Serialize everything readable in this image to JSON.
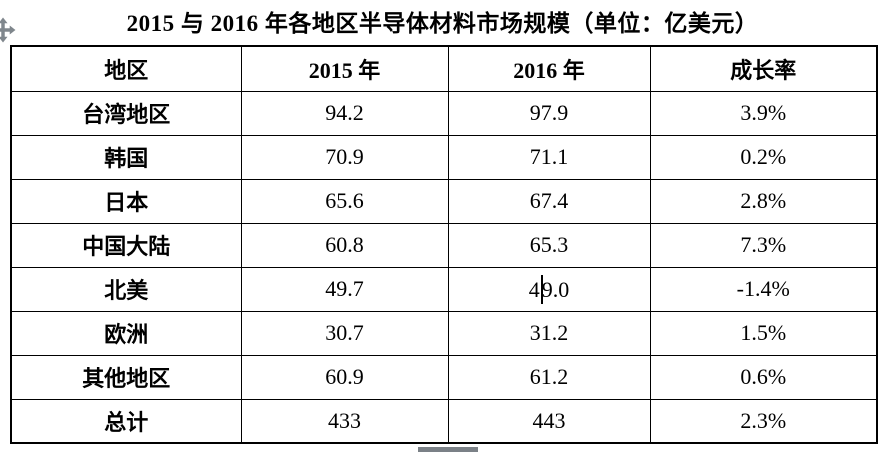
{
  "title": "2015 与 2016 年各地区半导体材料市场规模（单位：亿美元）",
  "table": {
    "headers": [
      "地区",
      "2015 年",
      "2016 年",
      "成长率"
    ],
    "rows": [
      [
        "台湾地区",
        "94.2",
        "97.9",
        "3.9%"
      ],
      [
        "韩国",
        "70.9",
        "71.1",
        "0.2%"
      ],
      [
        "日本",
        "65.6",
        "67.4",
        "2.8%"
      ],
      [
        "中国大陆",
        "60.8",
        "65.3",
        "7.3%"
      ],
      [
        "北美",
        "49.7",
        "49.0",
        "-1.4%"
      ],
      [
        "欧洲",
        "30.7",
        "31.2",
        "1.5%"
      ],
      [
        "其他地区",
        "60.9",
        "61.2",
        "0.6%"
      ],
      [
        "总计",
        "433",
        "443",
        "2.3%"
      ]
    ]
  },
  "caret": {
    "row": 4,
    "col": 2,
    "char_index": 1
  },
  "icons": {
    "table_move_handle": "move-cross-icon"
  },
  "colors": {
    "border": "#000000",
    "text": "#000000",
    "handle_gray": "#7f868c",
    "scroll_thumb_gray": "#7b8187"
  }
}
